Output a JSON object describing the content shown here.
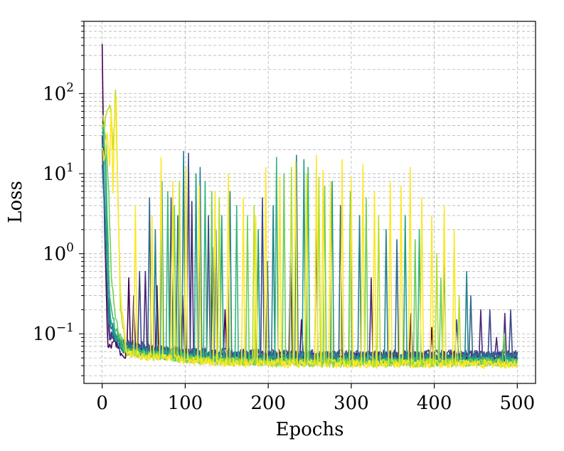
{
  "chart_data": {
    "type": "line",
    "title": "",
    "xlabel": "Epochs",
    "ylabel": "Loss",
    "xlim": [
      -22,
      522
    ],
    "ylim": [
      0.024,
      800
    ],
    "yscale": "log",
    "grid": {
      "major": true,
      "minor": true,
      "style": "dashed",
      "color": "#b3b3b3"
    },
    "legend": "none",
    "x_ticks": [
      {
        "value": 0,
        "label": "0"
      },
      {
        "value": 100,
        "label": "100"
      },
      {
        "value": 200,
        "label": "200"
      },
      {
        "value": 300,
        "label": "300"
      },
      {
        "value": 400,
        "label": "400"
      },
      {
        "value": 500,
        "label": "500"
      }
    ],
    "y_ticks": [
      {
        "value": 0.1,
        "base": "10",
        "exp": "−1"
      },
      {
        "value": 1,
        "base": "10",
        "exp": "0"
      },
      {
        "value": 10,
        "base": "10",
        "exp": "1"
      },
      {
        "value": 100,
        "base": "10",
        "exp": "2"
      }
    ],
    "colormap": "viridis",
    "series_count": 10,
    "series": [
      {
        "color": "#440154",
        "base": 0.05,
        "init": 450,
        "start": [
          [
            0,
            450
          ],
          [
            1,
            60
          ],
          [
            2,
            8
          ],
          [
            3,
            2
          ],
          [
            5,
            0.3
          ],
          [
            7,
            0.065
          ],
          [
            14,
            0.075
          ],
          [
            18,
            0.08
          ],
          [
            22,
            0.06
          ],
          [
            28,
            0.055
          ]
        ],
        "spikes": [
          [
            32,
            0.5
          ],
          [
            66,
            0.4
          ],
          [
            97,
            0.3
          ],
          [
            148,
            0.2
          ],
          [
            240,
            0.15
          ],
          [
            372,
            0.18
          ],
          [
            397,
            0.12
          ]
        ]
      },
      {
        "color": "#482878",
        "base": 0.052,
        "init": 30,
        "start": [
          [
            0,
            30
          ],
          [
            1,
            12
          ],
          [
            3,
            4
          ],
          [
            5,
            0.8
          ],
          [
            8,
            0.1
          ],
          [
            14,
            0.09
          ],
          [
            20,
            0.075
          ],
          [
            26,
            0.06
          ]
        ],
        "spikes": [
          [
            38,
            0.3
          ],
          [
            52,
            0.6
          ],
          [
            108,
            4.5
          ],
          [
            133,
            1.2
          ],
          [
            227,
            0.9
          ],
          [
            324,
            0.5
          ],
          [
            456,
            0.2
          ],
          [
            475,
            0.09
          ],
          [
            485,
            0.18
          ]
        ]
      },
      {
        "color": "#3e4989",
        "base": 0.055,
        "init": 20,
        "start": [
          [
            0,
            20
          ],
          [
            2,
            8
          ],
          [
            4,
            2
          ],
          [
            6,
            0.4
          ],
          [
            9,
            0.1
          ],
          [
            15,
            0.09
          ],
          [
            22,
            0.07
          ]
        ],
        "spikes": [
          [
            45,
            0.6
          ],
          [
            83,
            5
          ],
          [
            104,
            18
          ],
          [
            128,
            3
          ],
          [
            193,
            5
          ],
          [
            258,
            2
          ],
          [
            427,
            0.15
          ],
          [
            467,
            0.2
          ],
          [
            492,
            0.2
          ]
        ]
      },
      {
        "color": "#31688e",
        "base": 0.052,
        "init": 15,
        "start": [
          [
            0,
            15
          ],
          [
            2,
            6
          ],
          [
            4,
            1.5
          ],
          [
            7,
            0.3
          ],
          [
            10,
            0.12
          ],
          [
            16,
            0.1
          ],
          [
            24,
            0.07
          ]
        ],
        "spikes": [
          [
            57,
            5
          ],
          [
            91,
            3
          ],
          [
            137,
            2
          ],
          [
            199,
            0.8
          ],
          [
            287,
            4
          ],
          [
            355,
            1.5
          ],
          [
            444,
            0.3
          ]
        ]
      },
      {
        "color": "#26828e",
        "base": 0.048,
        "init": 25,
        "start": [
          [
            0,
            25
          ],
          [
            1,
            20
          ],
          [
            3,
            5
          ],
          [
            5,
            1
          ],
          [
            8,
            0.15
          ],
          [
            14,
            0.1
          ],
          [
            22,
            0.07
          ]
        ],
        "spikes": [
          [
            64,
            2
          ],
          [
            98,
            19
          ],
          [
            118,
            12
          ],
          [
            154,
            6
          ],
          [
            206,
            4
          ],
          [
            234,
            17
          ],
          [
            310,
            3
          ],
          [
            342,
            2
          ],
          [
            439,
            0.6
          ]
        ]
      },
      {
        "color": "#1f9e89",
        "base": 0.046,
        "init": 35,
        "start": [
          [
            0,
            35
          ],
          [
            2,
            30
          ],
          [
            4,
            10
          ],
          [
            6,
            1.5
          ],
          [
            9,
            0.2
          ],
          [
            15,
            0.1
          ],
          [
            24,
            0.07
          ]
        ],
        "spikes": [
          [
            72,
            8
          ],
          [
            113,
            10
          ],
          [
            144,
            3
          ],
          [
            188,
            2
          ],
          [
            243,
            15
          ],
          [
            277,
            8
          ],
          [
            365,
            3
          ],
          [
            412,
            1
          ]
        ]
      },
      {
        "color": "#35b779",
        "base": 0.044,
        "init": 30,
        "start": [
          [
            0,
            30
          ],
          [
            2,
            25
          ],
          [
            4,
            20
          ],
          [
            6,
            3
          ],
          [
            9,
            0.3
          ],
          [
            15,
            0.12
          ],
          [
            25,
            0.07
          ]
        ],
        "spikes": [
          [
            79,
            6
          ],
          [
            124,
            8
          ],
          [
            162,
            4
          ],
          [
            210,
            16
          ],
          [
            248,
            12
          ],
          [
            299,
            6
          ],
          [
            382,
            2
          ]
        ]
      },
      {
        "color": "#6ece58",
        "base": 0.043,
        "init": 40,
        "start": [
          [
            0,
            40
          ],
          [
            2,
            35
          ],
          [
            5,
            25
          ],
          [
            8,
            5
          ],
          [
            11,
            0.5
          ],
          [
            16,
            0.15
          ],
          [
            26,
            0.07
          ]
        ],
        "spikes": [
          [
            87,
            4
          ],
          [
            132,
            6
          ],
          [
            175,
            3
          ],
          [
            219,
            10
          ],
          [
            268,
            7
          ],
          [
            318,
            5
          ],
          [
            377,
            1.5
          ],
          [
            408,
            0.5
          ],
          [
            484,
            0.1
          ]
        ]
      },
      {
        "color": "#b5de2b",
        "base": 0.042,
        "init": 55,
        "start": [
          [
            0,
            55
          ],
          [
            3,
            40
          ],
          [
            6,
            60
          ],
          [
            10,
            70
          ],
          [
            13,
            20
          ],
          [
            16,
            100
          ],
          [
            19,
            5
          ],
          [
            22,
            0.2
          ],
          [
            28,
            0.08
          ]
        ],
        "spikes": [
          [
            93,
            8
          ],
          [
            141,
            5
          ],
          [
            183,
            4
          ],
          [
            228,
            12
          ],
          [
            261,
            9
          ],
          [
            333,
            3
          ],
          [
            403,
            1
          ],
          [
            430,
            0.3
          ]
        ]
      },
      {
        "color": "#fde725",
        "base": 0.041,
        "init": 20,
        "start": [
          [
            0,
            20
          ],
          [
            3,
            15
          ],
          [
            6,
            30
          ],
          [
            9,
            12
          ],
          [
            11,
            70
          ],
          [
            13,
            5
          ],
          [
            15,
            60
          ],
          [
            17,
            100
          ],
          [
            19,
            4
          ],
          [
            22,
            0.3
          ],
          [
            28,
            0.09
          ]
        ],
        "spikes": [
          [
            40,
            4
          ],
          [
            60,
            3
          ],
          [
            71,
            16
          ],
          [
            85,
            8
          ],
          [
            101,
            12
          ],
          [
            117,
            7
          ],
          [
            136,
            6
          ],
          [
            152,
            10
          ],
          [
            170,
            5
          ],
          [
            185,
            3
          ],
          [
            197,
            12
          ],
          [
            214,
            9
          ],
          [
            233,
            14
          ],
          [
            246,
            10
          ],
          [
            258,
            17
          ],
          [
            266,
            11
          ],
          [
            275,
            8
          ],
          [
            289,
            15
          ],
          [
            300,
            9
          ],
          [
            314,
            13
          ],
          [
            328,
            6
          ],
          [
            347,
            8
          ],
          [
            360,
            7
          ],
          [
            371,
            12
          ],
          [
            385,
            5
          ],
          [
            397,
            3
          ],
          [
            412,
            4
          ],
          [
            424,
            2
          ]
        ]
      }
    ]
  }
}
